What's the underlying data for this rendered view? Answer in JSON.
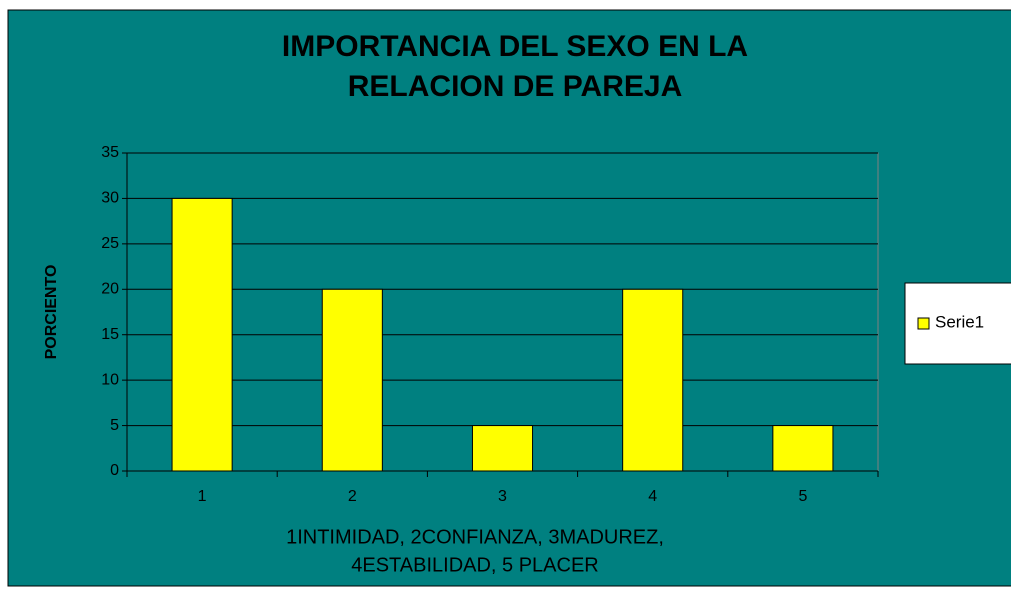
{
  "chart_data": {
    "type": "bar",
    "title": [
      "IMPORTANCIA DEL SEXO EN LA",
      "RELACION DE PAREJA"
    ],
    "ylabel": "PORCIENTO",
    "xlabel": [
      "1INTIMIDAD,  2CONFIANZA,  3MADUREZ,",
      "4ESTABILIDAD, 5 PLACER"
    ],
    "categories": [
      "1",
      "2",
      "3",
      "4",
      "5"
    ],
    "series": [
      {
        "name": "Serie1",
        "color": "#ffff00",
        "values": [
          30,
          20,
          5,
          20,
          5
        ]
      }
    ],
    "ylim": [
      0,
      35
    ],
    "yticks": [
      0,
      5,
      10,
      15,
      20,
      25,
      30,
      35
    ],
    "grid": true,
    "legend": "right"
  }
}
